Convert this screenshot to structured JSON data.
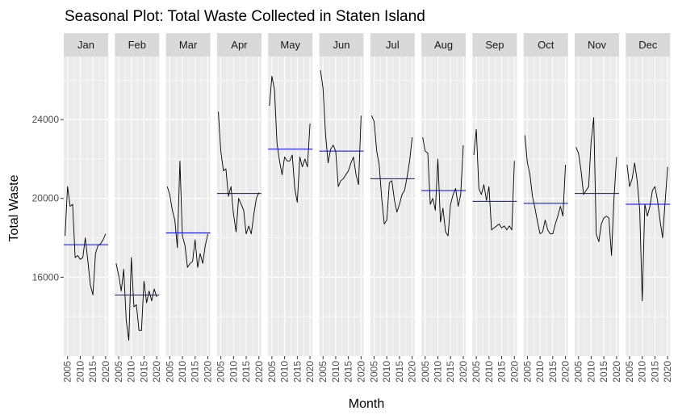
{
  "chart_data": {
    "type": "line",
    "title": "Seasonal Plot: Total Waste Collected in Staten Island",
    "xlabel": "Month",
    "ylabel": "Total Waste",
    "facets": [
      "Jan",
      "Feb",
      "Mar",
      "Apr",
      "May",
      "Jun",
      "Jul",
      "Aug",
      "Sep",
      "Oct",
      "Nov",
      "Dec"
    ],
    "x_ticks": [
      "2005",
      "2010",
      "2015",
      "2020"
    ],
    "y_ticks": [
      16000,
      20000,
      24000
    ],
    "xlim": [
      2003.5,
      2021
    ],
    "ylim": [
      12000,
      27200
    ],
    "grid": true,
    "colors": {
      "panel_bg": "#ebebeb",
      "grid": "#ffffff",
      "strip_bg": "#d9d9d9",
      "line": "#000000",
      "mean_line": "#0000ff"
    },
    "series": [
      {
        "years": [
          2004,
          2005,
          2006,
          2007,
          2008,
          2009,
          2010,
          2011,
          2012,
          2013,
          2014,
          2015,
          2016,
          2017,
          2018,
          2019,
          2020
        ],
        "values": [
          18100,
          20600,
          19600,
          19700,
          17000,
          17100,
          16900,
          17000,
          18000,
          16800,
          15600,
          15100,
          17200,
          17600,
          17700,
          17900,
          18200
        ],
        "mean": 17650
      },
      {
        "years": [
          2004,
          2005,
          2006,
          2007,
          2008,
          2009,
          2010,
          2011,
          2012,
          2013,
          2014,
          2015,
          2016,
          2017,
          2018,
          2019,
          2020
        ],
        "values": [
          16700,
          16100,
          15300,
          16400,
          13800,
          12800,
          17000,
          14500,
          14600,
          13300,
          13300,
          15800,
          14700,
          15300,
          14800,
          15400,
          15000
        ],
        "mean": 15100
      },
      {
        "years": [
          2004,
          2005,
          2006,
          2007,
          2008,
          2009,
          2010,
          2011,
          2012,
          2013,
          2014,
          2015,
          2016,
          2017,
          2018,
          2019,
          2020
        ],
        "values": [
          20600,
          20200,
          19400,
          18900,
          17500,
          21900,
          18100,
          17600,
          16500,
          16700,
          16800,
          17900,
          16500,
          17200,
          16700,
          17600,
          18200
        ],
        "mean": 18250
      },
      {
        "years": [
          2004,
          2005,
          2006,
          2007,
          2008,
          2009,
          2010,
          2011,
          2012,
          2013,
          2014,
          2015,
          2016,
          2017,
          2018,
          2019,
          2020
        ],
        "values": [
          24400,
          22400,
          21400,
          21500,
          20100,
          20600,
          19200,
          18300,
          20000,
          19700,
          19400,
          18200,
          18600,
          18200,
          19200,
          20000,
          20300
        ],
        "mean": 20250
      },
      {
        "years": [
          2004,
          2005,
          2006,
          2007,
          2008,
          2009,
          2010,
          2011,
          2012,
          2013,
          2014,
          2015,
          2016,
          2017,
          2018,
          2019,
          2020
        ],
        "values": [
          24700,
          26200,
          25500,
          22800,
          21900,
          21200,
          22100,
          21900,
          21900,
          22200,
          20500,
          19800,
          22100,
          21600,
          22000,
          21600,
          23800
        ],
        "mean": 22500
      },
      {
        "years": [
          2004,
          2005,
          2006,
          2007,
          2008,
          2009,
          2010,
          2011,
          2012,
          2013,
          2014,
          2015,
          2016,
          2017,
          2018,
          2019,
          2020
        ],
        "values": [
          26500,
          25600,
          23200,
          21800,
          22500,
          22700,
          22400,
          20600,
          20900,
          21000,
          21200,
          21400,
          21800,
          22100,
          21200,
          20700,
          24200
        ],
        "mean": 22400
      },
      {
        "years": [
          2004,
          2005,
          2006,
          2007,
          2008,
          2009,
          2010,
          2011,
          2012,
          2013,
          2014,
          2015,
          2016,
          2017,
          2018,
          2019,
          2020
        ],
        "values": [
          24200,
          23900,
          22400,
          21700,
          20000,
          18700,
          18900,
          20800,
          20900,
          19900,
          19300,
          19700,
          20200,
          20400,
          21100,
          21900,
          23100
        ],
        "mean": 21000
      },
      {
        "years": [
          2004,
          2005,
          2006,
          2007,
          2008,
          2009,
          2010,
          2011,
          2012,
          2013,
          2014,
          2015,
          2016,
          2017,
          2018,
          2019,
          2020
        ],
        "values": [
          23100,
          22400,
          22300,
          19700,
          20000,
          19400,
          22000,
          18800,
          19500,
          18300,
          18100,
          19700,
          20200,
          20500,
          19600,
          20200,
          22700
        ],
        "mean": 20400
      },
      {
        "years": [
          2004,
          2005,
          2006,
          2007,
          2008,
          2009,
          2010,
          2011,
          2012,
          2013,
          2014,
          2015,
          2016,
          2017,
          2018,
          2019,
          2020
        ],
        "values": [
          22200,
          23500,
          20500,
          20200,
          20700,
          19900,
          20600,
          18400,
          18500,
          18600,
          18700,
          18500,
          18600,
          18400,
          18600,
          18400,
          21900
        ],
        "mean": 19850
      },
      {
        "years": [
          2004,
          2005,
          2006,
          2007,
          2008,
          2009,
          2010,
          2011,
          2012,
          2013,
          2014,
          2015,
          2016,
          2017,
          2018,
          2019,
          2020
        ],
        "values": [
          23200,
          21800,
          21200,
          20100,
          19500,
          18800,
          18200,
          18300,
          18900,
          18400,
          18200,
          18200,
          18700,
          19100,
          19600,
          19100,
          21700
        ],
        "mean": 19750
      },
      {
        "years": [
          2004,
          2005,
          2006,
          2007,
          2008,
          2009,
          2010,
          2011,
          2012,
          2013,
          2014,
          2015,
          2016,
          2017,
          2018,
          2019,
          2020
        ],
        "values": [
          22600,
          22300,
          21400,
          20200,
          20400,
          20600,
          22900,
          24100,
          18200,
          17800,
          18700,
          19000,
          19100,
          19000,
          17100,
          20000,
          22100
        ],
        "mean": 20250
      },
      {
        "years": [
          2004,
          2005,
          2006,
          2007,
          2008,
          2009,
          2010,
          2011,
          2012,
          2013,
          2014,
          2015,
          2016,
          2017,
          2018,
          2019,
          2020
        ],
        "values": [
          21700,
          20600,
          21000,
          21800,
          20900,
          19400,
          14800,
          19700,
          19100,
          19600,
          20400,
          20600,
          19900,
          18900,
          18000,
          19800,
          21600
        ],
        "mean": 19700
      }
    ]
  }
}
